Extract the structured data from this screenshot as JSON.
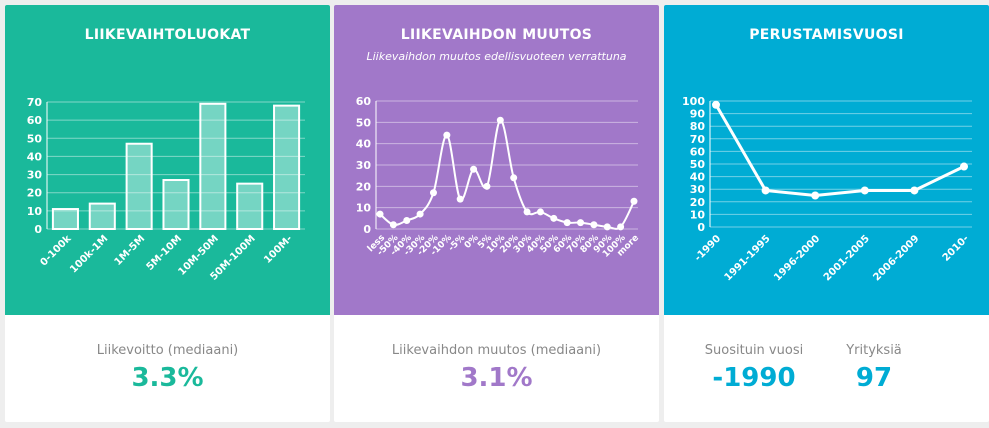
{
  "colors": {
    "green": "#1ab99b",
    "purple": "#a178c9",
    "blue": "#00acd4"
  },
  "cards": [
    {
      "title": "LIIKEVAIHTOLUOKAT",
      "stat_label": "Liikevoitto (mediaani)",
      "stat_value": "3.3%"
    },
    {
      "title": "LIIKEVAIHDON MUUTOS",
      "subtitle": "Liikevaihdon muutos edellisvuoteen verrattuna",
      "stat_label": "Liikevaihdon muutos (mediaani)",
      "stat_value": "3.1%"
    },
    {
      "title": "PERUSTAMISVUOSI",
      "stat_label": "Suosituin vuosi",
      "stat_value": "-1990",
      "stat2_label": "Yrityksiä",
      "stat2_value": "97"
    }
  ],
  "chart_data": [
    {
      "type": "bar",
      "title": "LIIKEVAIHTOLUOKAT",
      "categories": [
        "0-100k",
        "100k-1M",
        "1M-5M",
        "5M-10M",
        "10M-50M",
        "50M-100M",
        "100M-"
      ],
      "values": [
        11,
        14,
        47,
        27,
        69,
        25,
        68
      ],
      "ylim": [
        0,
        70
      ],
      "yticks": [
        0,
        10,
        20,
        30,
        40,
        50,
        60,
        70
      ]
    },
    {
      "type": "line",
      "title": "LIIKEVAIHDON MUUTOS",
      "categories": [
        "less",
        "-50%",
        "-40%",
        "-30%",
        "-20%",
        "-10%",
        "-5%",
        "0%",
        "5%",
        "10%",
        "20%",
        "30%",
        "40%",
        "50%",
        "60%",
        "70%",
        "80%",
        "90%",
        "100%",
        "more"
      ],
      "values": [
        7,
        2,
        4,
        7,
        17,
        44,
        14,
        28,
        20,
        51,
        24,
        8,
        8,
        5,
        3,
        3,
        2,
        1,
        1,
        13
      ],
      "ylim": [
        0,
        60
      ],
      "yticks": [
        0,
        10,
        20,
        30,
        40,
        50,
        60
      ]
    },
    {
      "type": "line",
      "title": "PERUSTAMISVUOSI",
      "categories": [
        "-1990",
        "1991-1995",
        "1996-2000",
        "2001-2005",
        "2006-2009",
        "2010-"
      ],
      "values": [
        97,
        29,
        25,
        29,
        29,
        48
      ],
      "ylim": [
        0,
        100
      ],
      "yticks": [
        0,
        10,
        20,
        30,
        40,
        50,
        60,
        70,
        80,
        90,
        100
      ]
    }
  ]
}
